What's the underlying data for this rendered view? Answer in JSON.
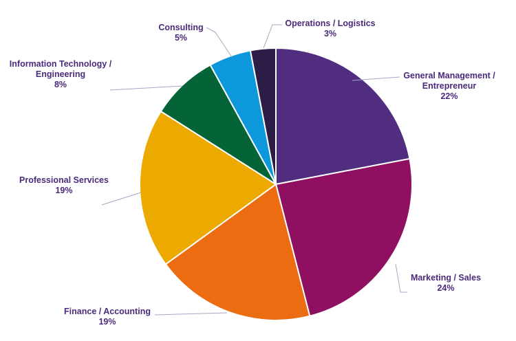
{
  "chart_data": {
    "type": "pie",
    "title": "",
    "start_angle_deg": 0,
    "direction": "clockwise",
    "slices": [
      {
        "label_lines": [
          "General Management /",
          "Entrepreneur"
        ],
        "value": 22,
        "value_label": "22%",
        "color": "#512d7f"
      },
      {
        "label_lines": [
          "Marketing / Sales"
        ],
        "value": 24,
        "value_label": "24%",
        "color": "#8f1060"
      },
      {
        "label_lines": [
          "Finance / Accounting"
        ],
        "value": 19,
        "value_label": "19%",
        "color": "#ec6c12"
      },
      {
        "label_lines": [
          "Professional  Services"
        ],
        "value": 19,
        "value_label": "19%",
        "color": "#eca900"
      },
      {
        "label_lines": [
          "Information Technology /",
          "Engineering"
        ],
        "value": 8,
        "value_label": "8%",
        "color": "#046437"
      },
      {
        "label_lines": [
          "Consulting"
        ],
        "value": 5,
        "value_label": "5%",
        "color": "#0d98dc"
      },
      {
        "label_lines": [
          "Operations / Logistics"
        ],
        "value": 3,
        "value_label": "3%",
        "color": "#2b1d46"
      }
    ],
    "legend": "none",
    "labels": "outside with leader lines"
  }
}
